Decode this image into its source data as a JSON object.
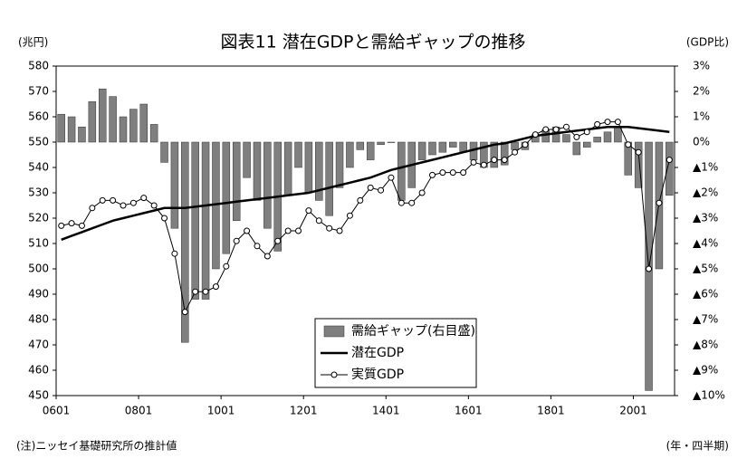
{
  "chart_data": {
    "type": "bar-line",
    "title": "図表11 潜在GDPと需給ギャップの推移",
    "y_label": "(兆円)",
    "y2_label": "(GDP比)",
    "x_label": "(年・四半期)",
    "note": "(注)ニッセイ基礎研究所の推計値",
    "categories": [
      "0601",
      null,
      null,
      null,
      null,
      null,
      null,
      null,
      "0801",
      null,
      null,
      null,
      null,
      null,
      null,
      null,
      "1001",
      null,
      null,
      null,
      null,
      null,
      null,
      null,
      "1201",
      null,
      null,
      null,
      null,
      null,
      null,
      null,
      "1401",
      null,
      null,
      null,
      null,
      null,
      null,
      null,
      "1601",
      null,
      null,
      null,
      null,
      null,
      null,
      null,
      "1801",
      null,
      null,
      null,
      null,
      null,
      null,
      null,
      "2001",
      null,
      null,
      null
    ],
    "ylim": [
      450,
      580
    ],
    "yticks": [
      450,
      460,
      470,
      480,
      490,
      500,
      510,
      520,
      530,
      540,
      550,
      560,
      570,
      580
    ],
    "y2lim": [
      -10,
      3
    ],
    "y2ticks": [
      {
        "value": -10,
        "label": "▲10%"
      },
      {
        "value": -9,
        "label": "▲9%"
      },
      {
        "value": -8,
        "label": "▲8%"
      },
      {
        "value": -7,
        "label": "▲7%"
      },
      {
        "value": -6,
        "label": "▲6%"
      },
      {
        "value": -5,
        "label": "▲5%"
      },
      {
        "value": -4,
        "label": "▲4%"
      },
      {
        "value": -3,
        "label": "▲3%"
      },
      {
        "value": -2,
        "label": "▲2%"
      },
      {
        "value": -1,
        "label": "▲1%"
      },
      {
        "value": 0,
        "label": "0%"
      },
      {
        "value": 1,
        "label": "1%"
      },
      {
        "value": 2,
        "label": "2%"
      },
      {
        "value": 3,
        "label": "3%"
      }
    ],
    "series": [
      {
        "name": "需給ギャップ(右目盛)",
        "type": "bar",
        "axis": "y2",
        "color": "#7f7f7f",
        "values": [
          1.1,
          1.0,
          0.6,
          1.6,
          2.1,
          1.8,
          1.0,
          1.3,
          1.5,
          0.7,
          -0.8,
          -3.4,
          -7.9,
          -6.2,
          -6.2,
          -5.0,
          -4.4,
          -3.1,
          -1.4,
          -2.3,
          -3.4,
          -4.3,
          -2.1,
          -1.0,
          -2.0,
          -2.3,
          -2.9,
          -1.8,
          -1.0,
          -0.3,
          -0.7,
          -0.1,
          0,
          -2.3,
          -1.8,
          -0.7,
          -0.5,
          -0.4,
          -0.2,
          -0.4,
          -0.7,
          -1.0,
          -1.0,
          -0.9,
          -0.3,
          -0.3,
          0.3,
          0.5,
          0.6,
          0.3,
          -0.5,
          -0.2,
          0.2,
          0.4,
          0.6,
          -1.3,
          -1.8,
          -9.8,
          -5.0,
          -2.1
        ]
      },
      {
        "name": "潜在GDP",
        "type": "line",
        "color": "#000000",
        "values": [
          511.5,
          513,
          514.5,
          516,
          517.5,
          519,
          520,
          521,
          522,
          523,
          524,
          524,
          524,
          524.5,
          525,
          525.5,
          526,
          526.5,
          527,
          527.5,
          528,
          528.5,
          529,
          529.5,
          530,
          531,
          532,
          533,
          534,
          535,
          536,
          537.5,
          539,
          540,
          541,
          542,
          543,
          544,
          545,
          546,
          547,
          548,
          549,
          549.5,
          550.5,
          551.5,
          552.5,
          553,
          553.5,
          554,
          554.5,
          555,
          555.5,
          556,
          556,
          556,
          555.5,
          555,
          554.5,
          554
        ]
      },
      {
        "name": "実質GDP",
        "type": "line-marker",
        "color": "#000000",
        "values": [
          517,
          518,
          517,
          524,
          527,
          527,
          525,
          526,
          528,
          525,
          520,
          506,
          483,
          491,
          491,
          493,
          501,
          511,
          515,
          509,
          505,
          511,
          515,
          515,
          523,
          519,
          516,
          515,
          521,
          527,
          532,
          531,
          536,
          526,
          526,
          530,
          537,
          538,
          538,
          538,
          542,
          541,
          543,
          543,
          546,
          549,
          553,
          555,
          555,
          556,
          552,
          554,
          557,
          558,
          558,
          549,
          546,
          500,
          526,
          543
        ]
      }
    ]
  }
}
